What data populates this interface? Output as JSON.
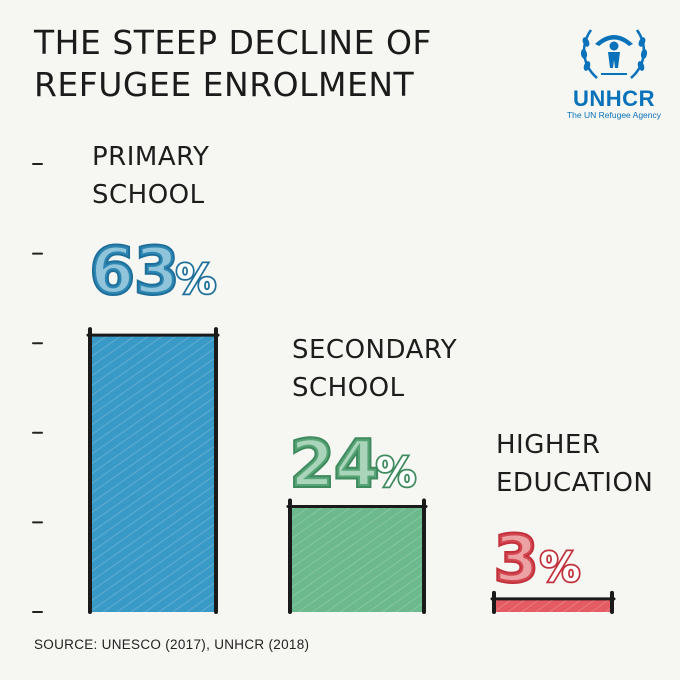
{
  "title": {
    "line1": "THE STEEP DECLINE OF",
    "line2": "REFUGEE ENROLMENT"
  },
  "logo": {
    "name": "UNHCR",
    "tagline": "The UN Refugee Agency"
  },
  "source": "SOURCE: UNESCO (2017), UNHCR (2018)",
  "colors": {
    "primary": "#3a9ac7",
    "secondary": "#6bb98d",
    "higher": "#e45b63",
    "brand": "#0a72ba"
  },
  "chart_data": {
    "type": "bar",
    "title": "THE STEEP DECLINE OF REFUGEE ENROLMENT",
    "xlabel": "",
    "ylabel": "",
    "ylim": [
      0,
      66
    ],
    "unit": "%",
    "categories": [
      "PRIMARY SCHOOL",
      "SECONDARY SCHOOL",
      "HIGHER EDUCATION"
    ],
    "category_lines": [
      [
        "PRIMARY",
        "SCHOOL"
      ],
      [
        "SECONDARY",
        "SCHOOL"
      ],
      [
        "HIGHER",
        "EDUCATION"
      ]
    ],
    "values": [
      63,
      24,
      3
    ],
    "value_labels": [
      "63",
      "24",
      "3"
    ],
    "value_suffix": "%",
    "colors": [
      "#3a9ac7",
      "#6bb98d",
      "#e45b63"
    ],
    "dark_colors": [
      "#1f6f9b",
      "#3f8a5e",
      "#c2323d"
    ],
    "y_ticks": 6,
    "grid": false
  }
}
